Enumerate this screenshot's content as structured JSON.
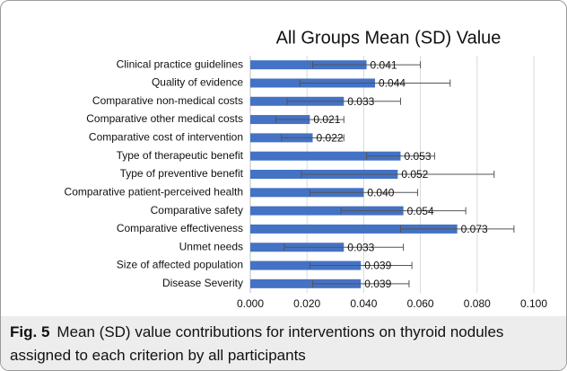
{
  "chart_data": {
    "type": "bar",
    "orientation": "horizontal",
    "title": "All Groups Mean (SD) Value",
    "categories": [
      "Clinical practice guidelines",
      "Quality of evidence",
      "Comparative non-medical costs",
      "Comparative other medical costs",
      "Comparative cost of intervention",
      "Type of therapeutic benefit",
      "Type of preventive benefit",
      "Comparative patient-perceived health",
      "Comparative safety",
      "Comparative effectiveness",
      "Unmet needs",
      "Size of affected population",
      "Disease Severity"
    ],
    "values": [
      0.041,
      0.044,
      0.033,
      0.021,
      0.022,
      0.053,
      0.052,
      0.04,
      0.054,
      0.073,
      0.033,
      0.039,
      0.039
    ],
    "value_labels": [
      "0.041",
      "0.044",
      "0.033",
      "0.021",
      "0.022",
      "0.053",
      "0.052",
      "0.040",
      "0.054",
      "0.073",
      "0.033",
      "0.039",
      "0.039"
    ],
    "errors": [
      0.019,
      0.0265,
      0.02,
      0.012,
      0.011,
      0.012,
      0.034,
      0.019,
      0.022,
      0.02,
      0.021,
      0.018,
      0.017
    ],
    "color": "#4472c4",
    "xlim": [
      0,
      0.1
    ],
    "xticks": [
      {
        "value": 0,
        "label": "0.000"
      },
      {
        "value": 0.02,
        "label": "0.020"
      },
      {
        "value": 0.04,
        "label": "0.040"
      },
      {
        "value": 0.06,
        "label": "0.060"
      },
      {
        "value": 0.08,
        "label": "0.080"
      },
      {
        "value": 0.1,
        "label": "0.100"
      }
    ],
    "grid": true
  },
  "caption": {
    "label": "Fig. 5",
    "text": "Mean (SD) value contributions for interventions on thyroid nodules assigned to each criterion by all participants"
  }
}
